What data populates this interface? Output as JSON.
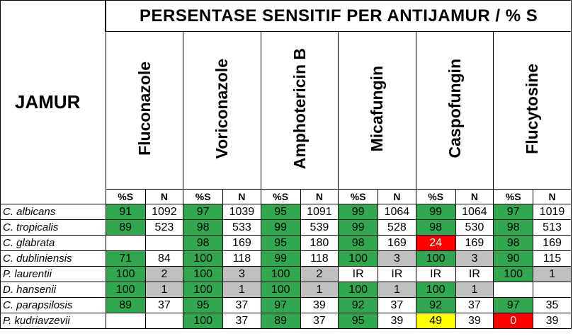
{
  "title": "PERSENTASE SENSITIF PER ANTIJAMUR / % S",
  "row_header": "JAMUR",
  "drugs": [
    "Fluconazole",
    "Voriconazole",
    "Amphotericin B",
    "Micafungin",
    "Caspofungin",
    "Flucytosine"
  ],
  "sub_headers": {
    "s": "%S",
    "n": "N"
  },
  "colors": {
    "green": "#2fa84f",
    "gray": "#c0c0c0",
    "red": "#ff0000",
    "yellow": "#ffff00"
  },
  "rows": [
    {
      "name": "C. albicans",
      "cells": [
        {
          "v": "91",
          "c": "g"
        },
        {
          "v": "1092",
          "c": "w"
        },
        {
          "v": "97",
          "c": "g"
        },
        {
          "v": "1039",
          "c": "w"
        },
        {
          "v": "95",
          "c": "g"
        },
        {
          "v": "1091",
          "c": "w"
        },
        {
          "v": "99",
          "c": "g"
        },
        {
          "v": "1064",
          "c": "w"
        },
        {
          "v": "99",
          "c": "g"
        },
        {
          "v": "1064",
          "c": "w"
        },
        {
          "v": "97",
          "c": "g"
        },
        {
          "v": "1019",
          "c": "w"
        }
      ]
    },
    {
      "name": "C. tropicalis",
      "cells": [
        {
          "v": "89",
          "c": "g"
        },
        {
          "v": "523",
          "c": "w"
        },
        {
          "v": "98",
          "c": "g"
        },
        {
          "v": "533",
          "c": "w"
        },
        {
          "v": "99",
          "c": "g"
        },
        {
          "v": "539",
          "c": "w"
        },
        {
          "v": "99",
          "c": "g"
        },
        {
          "v": "528",
          "c": "w"
        },
        {
          "v": "98",
          "c": "g"
        },
        {
          "v": "530",
          "c": "w"
        },
        {
          "v": "98",
          "c": "g"
        },
        {
          "v": "513",
          "c": "w"
        }
      ]
    },
    {
      "name": "C. glabrata",
      "cells": [
        {
          "v": "",
          "c": "w"
        },
        {
          "v": "",
          "c": "w"
        },
        {
          "v": "98",
          "c": "g"
        },
        {
          "v": "169",
          "c": "w"
        },
        {
          "v": "95",
          "c": "g"
        },
        {
          "v": "180",
          "c": "w"
        },
        {
          "v": "98",
          "c": "g"
        },
        {
          "v": "169",
          "c": "w"
        },
        {
          "v": "24",
          "c": "r"
        },
        {
          "v": "169",
          "c": "w"
        },
        {
          "v": "98",
          "c": "g"
        },
        {
          "v": "169",
          "c": "w"
        }
      ]
    },
    {
      "name": "C. dubliniensis",
      "cells": [
        {
          "v": "71",
          "c": "g"
        },
        {
          "v": "84",
          "c": "w"
        },
        {
          "v": "100",
          "c": "g"
        },
        {
          "v": "118",
          "c": "w"
        },
        {
          "v": "99",
          "c": "g"
        },
        {
          "v": "118",
          "c": "w"
        },
        {
          "v": "100",
          "c": "g"
        },
        {
          "v": "3",
          "c": "gr"
        },
        {
          "v": "100",
          "c": "g"
        },
        {
          "v": "3",
          "c": "gr"
        },
        {
          "v": "90",
          "c": "g"
        },
        {
          "v": "115",
          "c": "w"
        }
      ]
    },
    {
      "name": "P. laurentii",
      "cells": [
        {
          "v": "100",
          "c": "g"
        },
        {
          "v": "2",
          "c": "gr"
        },
        {
          "v": "100",
          "c": "g"
        },
        {
          "v": "3",
          "c": "gr"
        },
        {
          "v": "100",
          "c": "g"
        },
        {
          "v": "2",
          "c": "gr"
        },
        {
          "v": "IR",
          "c": "w"
        },
        {
          "v": "IR",
          "c": "w"
        },
        {
          "v": "IR",
          "c": "w"
        },
        {
          "v": "IR",
          "c": "w"
        },
        {
          "v": "100",
          "c": "g"
        },
        {
          "v": "1",
          "c": "gr"
        }
      ]
    },
    {
      "name": "D. hansenii",
      "cells": [
        {
          "v": "100",
          "c": "g"
        },
        {
          "v": "1",
          "c": "gr"
        },
        {
          "v": "100",
          "c": "g"
        },
        {
          "v": "1",
          "c": "gr"
        },
        {
          "v": "100",
          "c": "g"
        },
        {
          "v": "1",
          "c": "gr"
        },
        {
          "v": "100",
          "c": "g"
        },
        {
          "v": "1",
          "c": "gr"
        },
        {
          "v": "100",
          "c": "g"
        },
        {
          "v": "1",
          "c": "gr"
        },
        {
          "v": "",
          "c": "w"
        },
        {
          "v": "",
          "c": "w"
        }
      ]
    },
    {
      "name": "C. parapsilosis",
      "cells": [
        {
          "v": "89",
          "c": "g"
        },
        {
          "v": "37",
          "c": "w"
        },
        {
          "v": "95",
          "c": "g"
        },
        {
          "v": "37",
          "c": "w"
        },
        {
          "v": "97",
          "c": "g"
        },
        {
          "v": "39",
          "c": "w"
        },
        {
          "v": "92",
          "c": "g"
        },
        {
          "v": "37",
          "c": "w"
        },
        {
          "v": "92",
          "c": "g"
        },
        {
          "v": "37",
          "c": "w"
        },
        {
          "v": "97",
          "c": "g"
        },
        {
          "v": "35",
          "c": "w"
        }
      ]
    },
    {
      "name": "P. kudriavzevii",
      "cells": [
        {
          "v": "",
          "c": "w"
        },
        {
          "v": "",
          "c": "w"
        },
        {
          "v": "100",
          "c": "g"
        },
        {
          "v": "37",
          "c": "w"
        },
        {
          "v": "89",
          "c": "g"
        },
        {
          "v": "37",
          "c": "w"
        },
        {
          "v": "95",
          "c": "g"
        },
        {
          "v": "39",
          "c": "w"
        },
        {
          "v": "49",
          "c": "y"
        },
        {
          "v": "39",
          "c": "w"
        },
        {
          "v": "0",
          "c": "r"
        },
        {
          "v": "39",
          "c": "w"
        }
      ]
    }
  ]
}
